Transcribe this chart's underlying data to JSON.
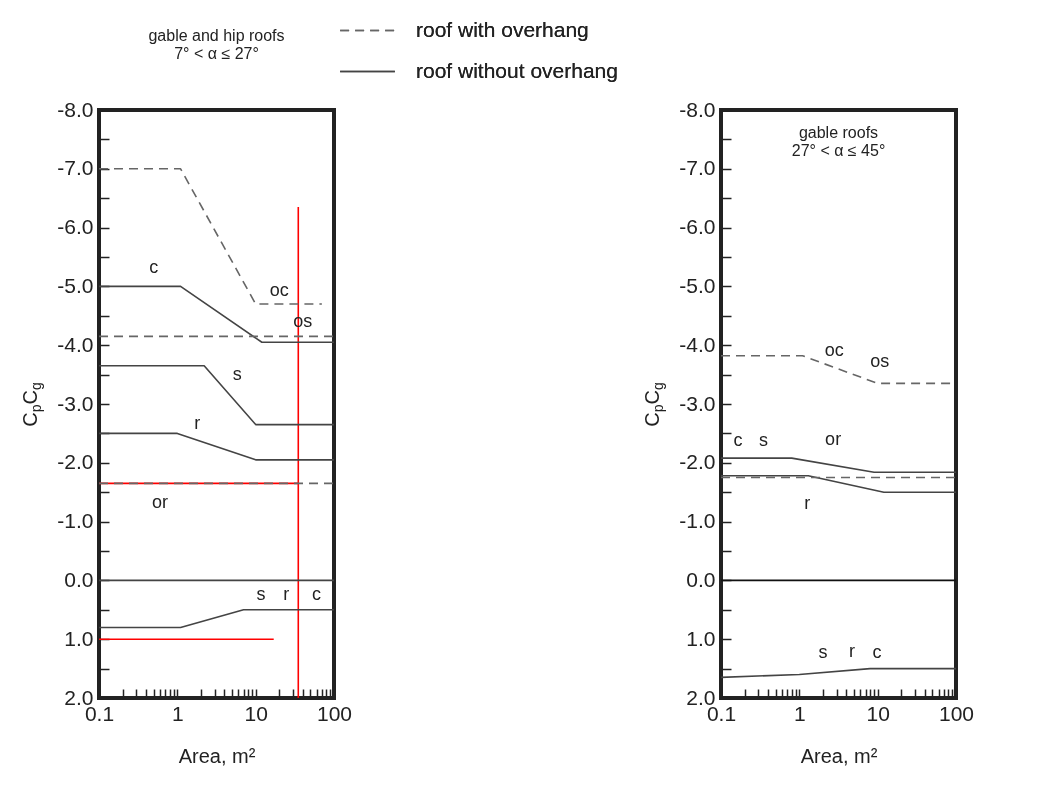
{
  "chart_data": [
    {
      "type": "line",
      "title": "gable and hip roofs",
      "subtitle": "7° < α ≤ 27°",
      "xlabel": "Area, m²",
      "ylabel": "C$_{p}$C$_{g}$",
      "log": "x",
      "grid": false,
      "legend": "top",
      "xlim": [
        0.1,
        100
      ],
      "ylim": [
        2,
        -8
      ],
      "xticks": [
        0.1,
        {
          "value": 0.2,
          "label": null
        },
        {
          "value": 0.3,
          "label": null
        },
        {
          "value": 0.4,
          "label": null
        },
        {
          "value": 0.5,
          "label": null
        },
        {
          "value": 0.6,
          "label": null
        },
        {
          "value": 0.7,
          "label": null
        },
        {
          "value": 0.8,
          "label": null
        },
        {
          "value": 0.9,
          "label": null
        },
        1,
        {
          "value": 2,
          "label": null
        },
        {
          "value": 3,
          "label": null
        },
        {
          "value": 4,
          "label": null
        },
        {
          "value": 5,
          "label": null
        },
        {
          "value": 6,
          "label": null
        },
        {
          "value": 7,
          "label": null
        },
        {
          "value": 8,
          "label": null
        },
        {
          "value": 9,
          "label": null
        },
        10,
        {
          "value": 20,
          "label": null
        },
        {
          "value": 30,
          "label": null
        },
        {
          "value": 40,
          "label": null
        },
        {
          "value": 50,
          "label": null
        },
        {
          "value": 60,
          "label": null
        },
        {
          "value": 70,
          "label": null
        },
        {
          "value": 80,
          "label": null
        },
        {
          "value": 90,
          "label": null
        },
        100
      ],
      "yticks": [
        {
          "value": -8,
          "label": "-8.0"
        },
        {
          "value": -7.5,
          "label": null
        },
        {
          "value": -7,
          "label": "-7.0"
        },
        {
          "value": -6.5,
          "label": null
        },
        {
          "value": -6,
          "label": "-6.0"
        },
        {
          "value": -5.5,
          "label": null
        },
        {
          "value": -5,
          "label": "-5.0"
        },
        {
          "value": -4.5,
          "label": null
        },
        {
          "value": -4,
          "label": "-4.0"
        },
        {
          "value": -3.5,
          "label": null
        },
        {
          "value": -3,
          "label": "-3.0"
        },
        {
          "value": -2.5,
          "label": null
        },
        {
          "value": -2,
          "label": "-2.0"
        },
        {
          "value": -1.5,
          "label": null
        },
        {
          "value": -1,
          "label": "-1.0"
        },
        {
          "value": -0.5,
          "label": null
        },
        {
          "value": 0,
          "label": "0.0"
        },
        {
          "value": 0.5,
          "label": null
        },
        {
          "value": 1,
          "label": "1.0"
        },
        {
          "value": 1.5,
          "label": null
        },
        {
          "value": 2,
          "label": "2.0"
        }
      ],
      "series": [
        {
          "name": "roof with overhang",
          "color": "#666666",
          "line_style": "dashed",
          "x": [
            0.1,
            1.1,
            10,
            70
          ],
          "values": [
            -7,
            -7,
            -4.7,
            -4.7
          ]
        },
        {
          "color": "#666666",
          "line_style": "dashed",
          "x": [
            0.1,
            100
          ],
          "values": [
            -4.15,
            -4.15
          ]
        },
        {
          "name": "roof without overhang",
          "color": "#444444",
          "line_style": "solid",
          "x": [
            0.1,
            1.1,
            12,
            100
          ],
          "values": [
            -5,
            -5,
            -4.05,
            -4.05
          ]
        },
        {
          "color": "#444444",
          "line_style": "solid",
          "x": [
            0.1,
            2.2,
            10,
            100
          ],
          "values": [
            -3.65,
            -3.65,
            -2.65,
            -2.65
          ]
        },
        {
          "color": "#444444",
          "line_style": "solid",
          "x": [
            0.1,
            1,
            10,
            100
          ],
          "values": [
            -2.5,
            -2.5,
            -2.05,
            -2.05
          ]
        },
        {
          "color": "#666666",
          "line_style": "dashed",
          "x": [
            0.1,
            100
          ],
          "values": [
            -1.65,
            -1.65
          ]
        },
        {
          "color": "#444444",
          "line_style": "solid",
          "x": [
            0.1,
            100
          ],
          "values": [
            0,
            0
          ]
        },
        {
          "color": "#444444",
          "line_style": "solid",
          "x": [
            0.1,
            1.1,
            7,
            100
          ],
          "values": [
            0.8,
            0.8,
            0.5,
            0.5
          ]
        },
        {
          "color": "#ff0000",
          "line_style": "solid",
          "x": [
            0.1,
            35
          ],
          "values": [
            -1.65,
            -1.65
          ]
        },
        {
          "color": "#ff0000",
          "line_style": "solid",
          "x": [
            0.1,
            17
          ],
          "values": [
            1,
            1
          ]
        },
        {
          "color": "#ff0000",
          "line_style": "solid",
          "x": [
            35,
            35
          ],
          "values": [
            -6.35,
            2
          ]
        }
      ],
      "annotations": [
        {
          "text": "c",
          "x": 0.5,
          "y": -5
        },
        {
          "text": "oc",
          "x": 20,
          "y": -4.7
        },
        {
          "text": "os",
          "x": 40,
          "y": -4.15
        },
        {
          "text": "s",
          "x": 5.8,
          "y": -3.01
        },
        {
          "text": "r",
          "x": 1.8,
          "y": -2.39
        },
        {
          "text": "or",
          "x": 0.6,
          "y": -1.65
        },
        {
          "text": "s",
          "x": 11.7,
          "y": 0.5
        },
        {
          "text": "r",
          "x": 24.5,
          "y": 0.5
        },
        {
          "text": "c",
          "x": 60,
          "y": 0.5
        }
      ]
    },
    {
      "type": "line",
      "title": "gable roofs",
      "subtitle": "27° < α ≤ 45°",
      "xlabel": "Area, m²",
      "ylabel": "C$_{p}$C$_{g}$",
      "log": "x",
      "grid": false,
      "xlim": [
        0.1,
        100
      ],
      "ylim": [
        2,
        -8
      ],
      "xticks": [
        0.1,
        {
          "value": 0.2,
          "label": null
        },
        {
          "value": 0.3,
          "label": null
        },
        {
          "value": 0.4,
          "label": null
        },
        {
          "value": 0.5,
          "label": null
        },
        {
          "value": 0.6,
          "label": null
        },
        {
          "value": 0.7,
          "label": null
        },
        {
          "value": 0.8,
          "label": null
        },
        {
          "value": 0.9,
          "label": null
        },
        1,
        {
          "value": 2,
          "label": null
        },
        {
          "value": 3,
          "label": null
        },
        {
          "value": 4,
          "label": null
        },
        {
          "value": 5,
          "label": null
        },
        {
          "value": 6,
          "label": null
        },
        {
          "value": 7,
          "label": null
        },
        {
          "value": 8,
          "label": null
        },
        {
          "value": 9,
          "label": null
        },
        10,
        {
          "value": 20,
          "label": null
        },
        {
          "value": 30,
          "label": null
        },
        {
          "value": 40,
          "label": null
        },
        {
          "value": 50,
          "label": null
        },
        {
          "value": 60,
          "label": null
        },
        {
          "value": 70,
          "label": null
        },
        {
          "value": 80,
          "label": null
        },
        {
          "value": 90,
          "label": null
        },
        100
      ],
      "yticks": [
        {
          "value": -8,
          "label": "-8.0"
        },
        {
          "value": -7.5,
          "label": null
        },
        {
          "value": -7,
          "label": "-7.0"
        },
        {
          "value": -6.5,
          "label": null
        },
        {
          "value": -6,
          "label": "-6.0"
        },
        {
          "value": -5.5,
          "label": null
        },
        {
          "value": -5,
          "label": "-5.0"
        },
        {
          "value": -4.5,
          "label": null
        },
        {
          "value": -4,
          "label": "-4.0"
        },
        {
          "value": -3.5,
          "label": null
        },
        {
          "value": -3,
          "label": "-3.0"
        },
        {
          "value": -2.5,
          "label": null
        },
        {
          "value": -2,
          "label": "-2.0"
        },
        {
          "value": -1.5,
          "label": null
        },
        {
          "value": -1,
          "label": "-1.0"
        },
        {
          "value": -0.5,
          "label": null
        },
        {
          "value": 0,
          "label": "0.0"
        },
        {
          "value": 0.5,
          "label": null
        },
        {
          "value": 1,
          "label": "1.0"
        },
        {
          "value": 1.5,
          "label": null
        },
        {
          "value": 2,
          "label": "2.0"
        }
      ],
      "series": [
        {
          "color": "#666666",
          "line_style": "dashed",
          "x": [
            0.1,
            1.1,
            10,
            100
          ],
          "values": [
            -3.82,
            -3.82,
            -3.35,
            -3.35
          ]
        },
        {
          "color": "#444444",
          "line_style": "solid",
          "x": [
            0.1,
            0.8,
            9,
            100
          ],
          "values": [
            -2.08,
            -2.08,
            -1.84,
            -1.84
          ]
        },
        {
          "color": "#666666",
          "line_style": "dashed",
          "x": [
            0.1,
            100
          ],
          "values": [
            -1.75,
            -1.75
          ]
        },
        {
          "color": "#444444",
          "line_style": "solid",
          "x": [
            0.1,
            1.3,
            12,
            100
          ],
          "values": [
            -1.78,
            -1.78,
            -1.5,
            -1.5
          ]
        },
        {
          "color": "#111111",
          "line_style": "solid",
          "x": [
            0.1,
            100
          ],
          "values": [
            0,
            0
          ]
        },
        {
          "color": "#444444",
          "line_style": "solid",
          "x": [
            0.1,
            1,
            8,
            100
          ],
          "values": [
            1.65,
            1.6,
            1.5,
            1.5
          ]
        }
      ],
      "annotations": [
        {
          "text": "oc",
          "x": 2.8,
          "y": -3.62
        },
        {
          "text": "os",
          "x": 10.6,
          "y": -3.35
        },
        {
          "text": "c",
          "x": 0.165,
          "y": -2.08
        },
        {
          "text": "s",
          "x": 0.35,
          "y": -2.08
        },
        {
          "text": "or",
          "x": 2.7,
          "y": -1.75
        },
        {
          "text": "r",
          "x": 1.26,
          "y": -1.78
        },
        {
          "text": "s",
          "x": 2,
          "y": 1.57
        },
        {
          "text": "r",
          "x": 4.7,
          "y": 1.53
        },
        {
          "text": "c",
          "x": 9.8,
          "y": 1.5
        }
      ]
    }
  ]
}
